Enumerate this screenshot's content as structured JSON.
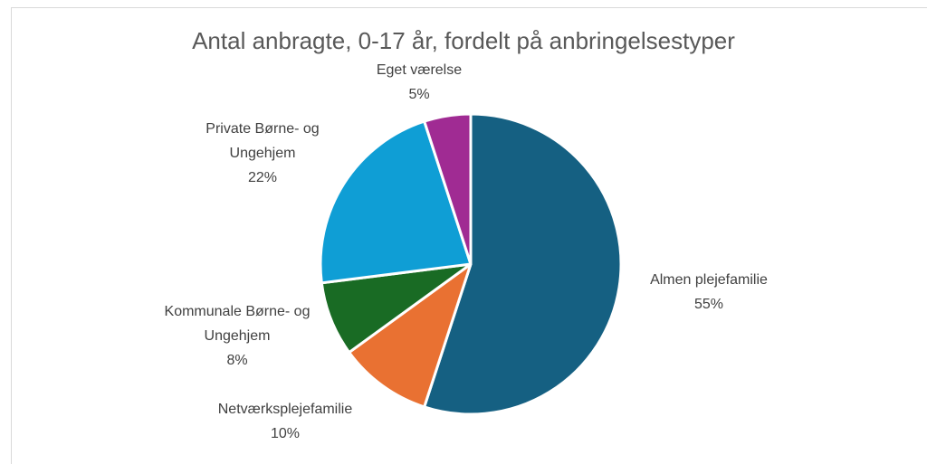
{
  "chart_data": {
    "type": "pie",
    "title": "Antal anbragte, 0-17 år, fordelt på anbringelsestyper",
    "categories": [
      "Almen plejefamilie",
      "Netværksplejefamilie",
      "Kommunale Børne- og Ungehjem",
      "Private Børne- og Ungehjem",
      "Eget værelse"
    ],
    "values": [
      55,
      10,
      8,
      22,
      5
    ],
    "value_labels": [
      "55%",
      "10%",
      "8%",
      "22%",
      "5%"
    ],
    "colors": [
      "#156082",
      "#e97132",
      "#196b24",
      "#0f9ed5",
      "#a02b93"
    ]
  }
}
